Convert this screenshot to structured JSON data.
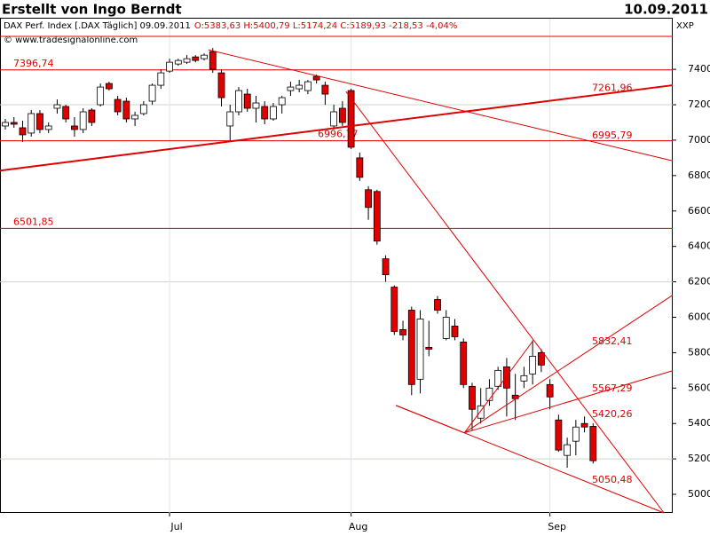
{
  "header": {
    "title": "Erstellt von Ingo Berndt",
    "date": "10.09.2011"
  },
  "chart_data": {
    "type": "candlestick",
    "legend": {
      "name": "DAX Perf. Index [.DAX Täglich] 09.09.2011",
      "quote": "O:5383,63 H:5400,79 L:5174,24 C:5189,93 -218,53 -4,04%",
      "source": "© www.tradesignalonline.com"
    },
    "axis_label": "XXP",
    "up_color": "#ffffff",
    "down_color": "#e00000",
    "line_color": "#e00000",
    "ylim": [
      4895,
      7606
    ],
    "yticks": [
      5000,
      5200,
      5400,
      5600,
      5800,
      6000,
      6200,
      6400,
      6600,
      6800,
      7000,
      7200,
      7400
    ],
    "grid_values": [
      5200,
      6200,
      7200
    ],
    "categories": [
      null,
      null,
      null,
      null,
      null,
      null,
      null,
      null,
      null,
      null,
      null,
      null,
      null,
      null,
      null,
      null,
      null,
      null,
      null,
      "Jul",
      null,
      null,
      null,
      null,
      null,
      null,
      null,
      null,
      null,
      null,
      null,
      null,
      null,
      null,
      null,
      null,
      null,
      null,
      null,
      null,
      "Aug",
      null,
      null,
      null,
      null,
      null,
      null,
      null,
      null,
      null,
      null,
      null,
      null,
      null,
      null,
      null,
      null,
      null,
      null,
      null,
      null,
      null,
      null,
      "Sep",
      null,
      null,
      null,
      null,
      null
    ],
    "ohlc": [
      [
        7080,
        7120,
        7060,
        7100
      ],
      [
        7100,
        7130,
        7070,
        7090
      ],
      [
        7070,
        7110,
        6990,
        7030
      ],
      [
        7040,
        7170,
        7020,
        7150
      ],
      [
        7150,
        7170,
        7040,
        7060
      ],
      [
        7060,
        7100,
        7040,
        7080
      ],
      [
        7180,
        7230,
        7150,
        7200
      ],
      [
        7190,
        7200,
        7100,
        7120
      ],
      [
        7080,
        7130,
        7020,
        7060
      ],
      [
        7060,
        7180,
        7040,
        7160
      ],
      [
        7170,
        7180,
        7080,
        7100
      ],
      [
        7200,
        7320,
        7190,
        7300
      ],
      [
        7320,
        7330,
        7280,
        7290
      ],
      [
        7230,
        7250,
        7140,
        7160
      ],
      [
        7220,
        7240,
        7100,
        7120
      ],
      [
        7120,
        7160,
        7080,
        7140
      ],
      [
        7150,
        7220,
        7140,
        7200
      ],
      [
        7220,
        7320,
        7200,
        7310
      ],
      [
        7310,
        7400,
        7290,
        7380
      ],
      [
        7390,
        7460,
        7380,
        7440
      ],
      [
        7430,
        7460,
        7420,
        7450
      ],
      [
        7440,
        7480,
        7430,
        7460
      ],
      [
        7470,
        7480,
        7440,
        7450
      ],
      [
        7460,
        7490,
        7450,
        7480
      ],
      [
        7500,
        7520,
        7380,
        7400
      ],
      [
        7380,
        7400,
        7190,
        7240
      ],
      [
        7080,
        7200,
        6990,
        7160
      ],
      [
        7160,
        7300,
        7140,
        7280
      ],
      [
        7260,
        7290,
        7160,
        7180
      ],
      [
        7180,
        7250,
        7100,
        7210
      ],
      [
        7190,
        7220,
        7090,
        7120
      ],
      [
        7120,
        7210,
        7110,
        7190
      ],
      [
        7200,
        7250,
        7150,
        7240
      ],
      [
        7280,
        7330,
        7250,
        7300
      ],
      [
        7290,
        7340,
        7270,
        7310
      ],
      [
        7280,
        7340,
        7260,
        7330
      ],
      [
        7360,
        7370,
        7320,
        7340
      ],
      [
        7310,
        7330,
        7200,
        7260
      ],
      [
        7080,
        7200,
        7060,
        7160
      ],
      [
        7180,
        7220,
        7080,
        7100
      ],
      [
        7280,
        7290,
        6950,
        6960
      ],
      [
        6900,
        6930,
        6770,
        6790
      ],
      [
        6720,
        6740,
        6550,
        6620
      ],
      [
        6710,
        6720,
        6410,
        6430
      ],
      [
        6330,
        6350,
        6200,
        6240
      ],
      [
        6170,
        6180,
        5900,
        5920
      ],
      [
        5930,
        5980,
        5870,
        5900
      ],
      [
        6040,
        6060,
        5560,
        5620
      ],
      [
        5650,
        6040,
        5570,
        5990
      ],
      [
        5830,
        5980,
        5780,
        5820
      ],
      [
        6100,
        6120,
        6020,
        6040
      ],
      [
        5880,
        6040,
        5870,
        6000
      ],
      [
        5950,
        5990,
        5870,
        5890
      ],
      [
        5860,
        5880,
        5600,
        5620
      ],
      [
        5610,
        5630,
        5360,
        5480
      ],
      [
        5430,
        5600,
        5400,
        5500
      ],
      [
        5530,
        5650,
        5500,
        5600
      ],
      [
        5610,
        5720,
        5590,
        5700
      ],
      [
        5720,
        5770,
        5440,
        5600
      ],
      [
        5560,
        5680,
        5420,
        5540
      ],
      [
        5640,
        5720,
        5600,
        5670
      ],
      [
        5680,
        5870,
        5620,
        5780
      ],
      [
        5800,
        5820,
        5690,
        5730
      ],
      [
        5620,
        5650,
        5480,
        5550
      ],
      [
        5420,
        5450,
        5240,
        5250
      ],
      [
        5220,
        5320,
        5150,
        5280
      ],
      [
        5300,
        5420,
        5220,
        5380
      ],
      [
        5400,
        5440,
        5350,
        5380
      ],
      [
        5383.63,
        5400.79,
        5174.24,
        5189.93
      ]
    ],
    "hlines": [
      {
        "value": 7586
      },
      {
        "value": 7396.74,
        "label": "7396,74"
      },
      {
        "value": 6996.77,
        "label": "6996,77"
      },
      {
        "value": 6501.85,
        "label": "6501,85"
      }
    ],
    "trendlines": [
      {
        "from": [
          -0.6,
          6828
        ],
        "to": [
          77.2,
          7310
        ],
        "width": 2
      },
      {
        "from": [
          23.5,
          7510
        ],
        "to": [
          77.2,
          6883
        ],
        "width": 1
      },
      {
        "from": [
          39.4,
          7275
        ],
        "to": [
          76.2,
          4895
        ],
        "width": 1
      },
      {
        "from": [
          45.2,
          5502
        ],
        "to": [
          76.2,
          4895
        ],
        "width": 1
      },
      {
        "from": [
          53.1,
          5347
        ],
        "to": [
          77.2,
          6125
        ],
        "width": 1
      },
      {
        "from": [
          53.1,
          5347
        ],
        "to": [
          77.2,
          5698
        ],
        "width": 1
      },
      {
        "from": [
          53.1,
          5347
        ],
        "to": [
          61.0,
          5864
        ],
        "width": 1
      },
      {
        "from": [
          45.2,
          5502
        ],
        "to": [
          53.1,
          5347
        ],
        "width": 1
      }
    ],
    "annotations": [
      {
        "text": "7261,96",
        "value": 7261.96
      },
      {
        "text": "6995,79",
        "value": 6995.79
      },
      {
        "text": "5832,41",
        "value": 5832.41
      },
      {
        "text": "5567,29",
        "value": 5567.29
      },
      {
        "text": "5420,26",
        "value": 5420.26
      },
      {
        "text": "5050,48",
        "value": 5050.48
      }
    ]
  }
}
